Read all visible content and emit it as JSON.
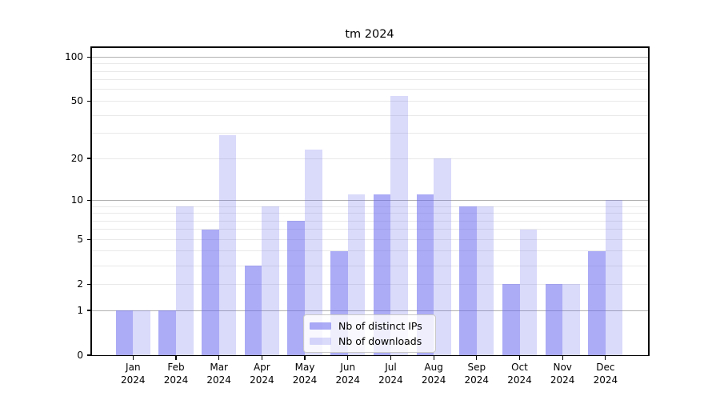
{
  "chart_data": {
    "type": "bar",
    "title": "tm 2024",
    "categories": [
      "Jan 2024",
      "Feb 2024",
      "Mar 2024",
      "Apr 2024",
      "May 2024",
      "Jun 2024",
      "Jul 2024",
      "Aug 2024",
      "Sep 2024",
      "Oct 2024",
      "Nov 2024",
      "Dec 2024"
    ],
    "series": [
      {
        "name": "Nb of distinct IPs",
        "color": "rgba(102,102,238,0.55)",
        "values": [
          1,
          1,
          6,
          3,
          7,
          4,
          11,
          11,
          9,
          2,
          2,
          4
        ]
      },
      {
        "name": "Nb of downloads",
        "color": "rgba(102,102,238,0.24)",
        "values": [
          1,
          9,
          29,
          9,
          23,
          11,
          54,
          20,
          9,
          6,
          2,
          10
        ]
      }
    ],
    "xlabel": "",
    "ylabel": "",
    "yscale": "log1p",
    "ylim": [
      0,
      116
    ],
    "y_tick_labels": [
      0,
      1,
      2,
      5,
      10,
      20,
      50,
      100
    ],
    "y_major_gridlines": [
      1,
      10,
      100
    ],
    "y_minor_gridlines": [
      2,
      3,
      4,
      5,
      6,
      7,
      8,
      9,
      20,
      30,
      40,
      50,
      60,
      70,
      80,
      90
    ],
    "grid": true,
    "legend": {
      "position": "lower-center",
      "entries": [
        "Nb of distinct IPs",
        "Nb of downloads"
      ]
    },
    "colors": {
      "background": "#ffffff",
      "axis": "#000000",
      "text": "#000000",
      "major_grid": "#b0b0b0",
      "minor_grid": "#e9e9e9"
    }
  }
}
